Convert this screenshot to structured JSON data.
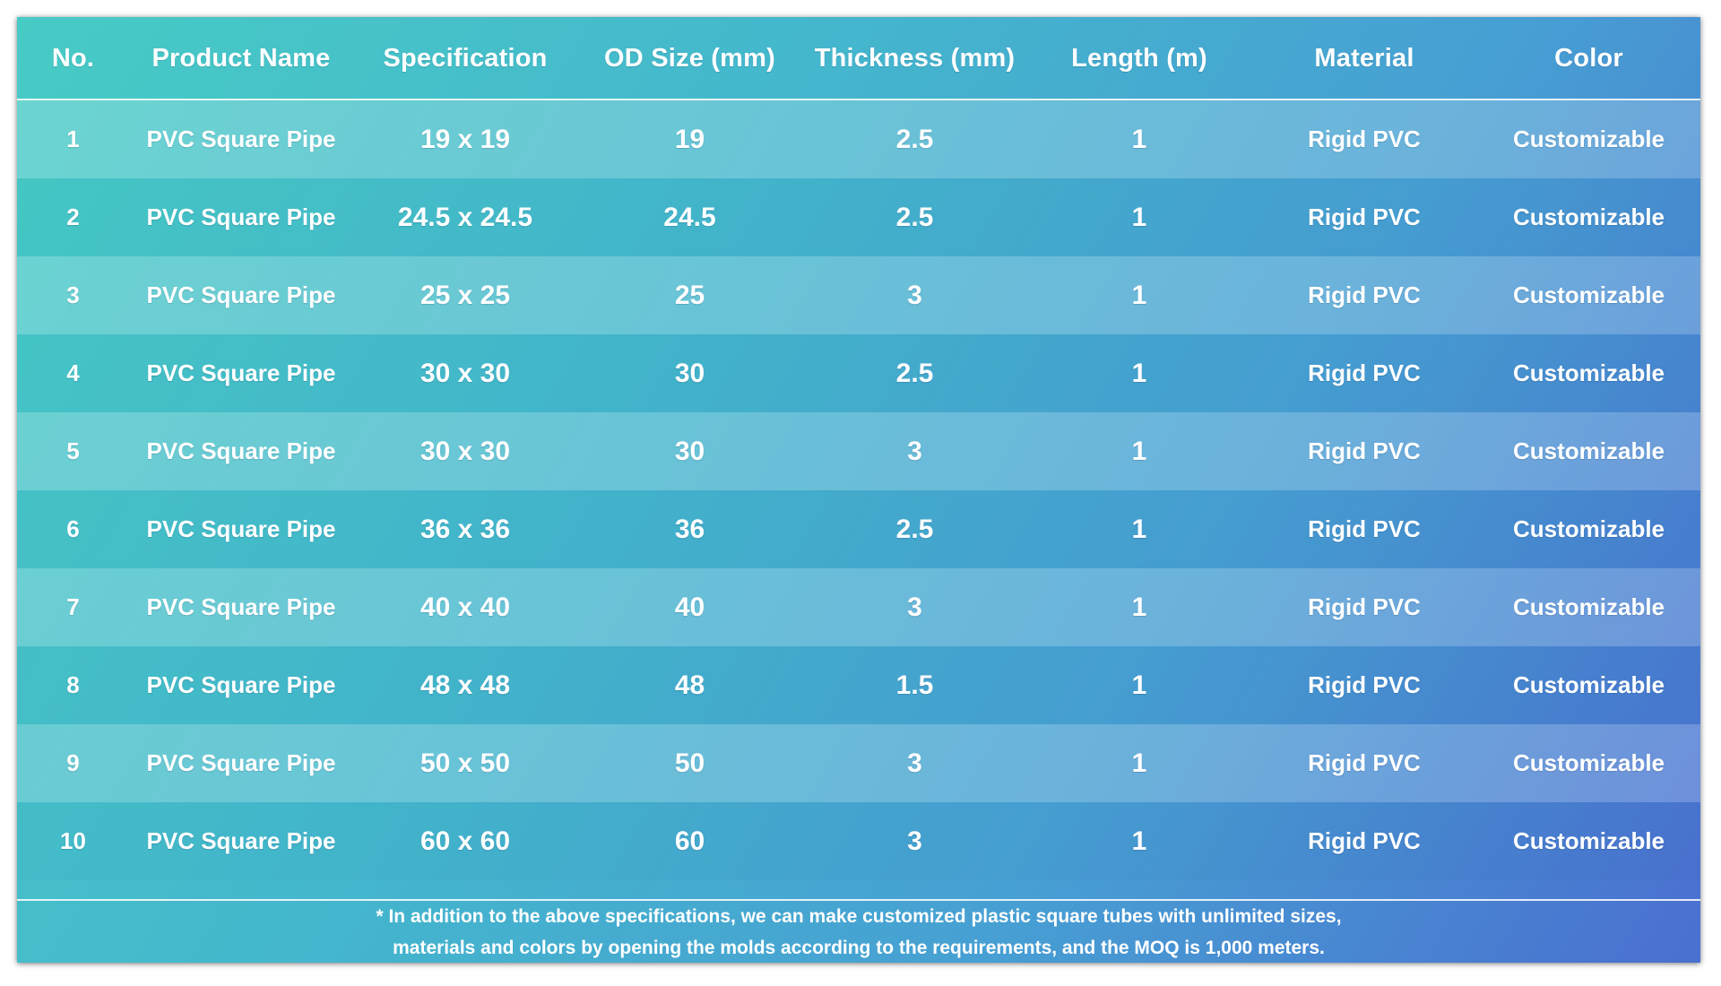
{
  "headers": [
    "No.",
    "Product Name",
    "Specification",
    "OD Size (mm)",
    "Thickness (mm)",
    "Length (m)",
    "Material",
    "Color"
  ],
  "rows": [
    [
      "1",
      "PVC Square Pipe",
      "19 x 19",
      "19",
      "2.5",
      "1",
      "Rigid PVC",
      "Customizable"
    ],
    [
      "2",
      "PVC Square Pipe",
      "24.5 x 24.5",
      "24.5",
      "2.5",
      "1",
      "Rigid PVC",
      "Customizable"
    ],
    [
      "3",
      "PVC Square Pipe",
      "25 x 25",
      "25",
      "3",
      "1",
      "Rigid PVC",
      "Customizable"
    ],
    [
      "4",
      "PVC Square Pipe",
      "30 x 30",
      "30",
      "2.5",
      "1",
      "Rigid PVC",
      "Customizable"
    ],
    [
      "5",
      "PVC Square Pipe",
      "30 x 30",
      "30",
      "3",
      "1",
      "Rigid PVC",
      "Customizable"
    ],
    [
      "6",
      "PVC Square Pipe",
      "36 x 36",
      "36",
      "2.5",
      "1",
      "Rigid PVC",
      "Customizable"
    ],
    [
      "7",
      "PVC Square Pipe",
      "40 x 40",
      "40",
      "3",
      "1",
      "Rigid PVC",
      "Customizable"
    ],
    [
      "8",
      "PVC Square Pipe",
      "48 x 48",
      "48",
      "1.5",
      "1",
      "Rigid PVC",
      "Customizable"
    ],
    [
      "9",
      "PVC Square Pipe",
      "50 x 50",
      "50",
      "3",
      "1",
      "Rigid PVC",
      "Customizable"
    ],
    [
      "10",
      "PVC Square Pipe",
      "60 x 60",
      "60",
      "3",
      "1",
      "Rigid PVC",
      "Customizable"
    ]
  ],
  "footnote": {
    "line1": "* In addition to the above specifications, we can make customized plastic square tubes with unlimited sizes,",
    "line2": "materials and colors by opening the molds according to the requirements, and the MOQ is 1,000 meters."
  },
  "colors": {
    "gradient_start": "#47cbc5",
    "gradient_end": "#4a6fd0",
    "text": "#ffffff"
  }
}
